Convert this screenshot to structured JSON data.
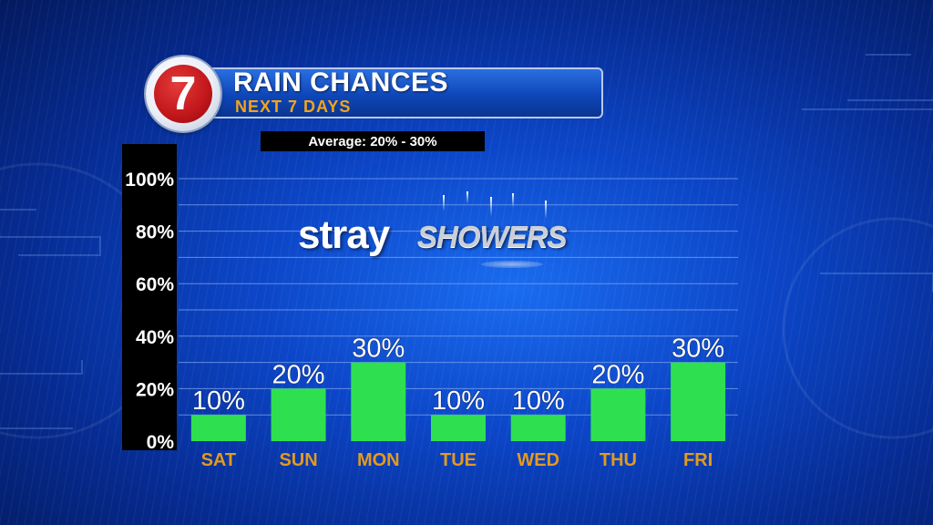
{
  "header": {
    "logo_text": "7",
    "title": "RAIN CHANCES",
    "subtitle": "NEXT 7 DAYS",
    "average_text": "Average: 20% - 30%"
  },
  "graphic": {
    "word1": "stray",
    "word2": "SHOWERS"
  },
  "colors": {
    "bar": "#2ee050",
    "day_label": "#e39a1e",
    "value_label": "#ffffff",
    "gridline": "#7fa6ee",
    "title_accent": "#f4a41a",
    "logo_red": "#c1161a"
  },
  "chart_data": {
    "type": "bar",
    "categories": [
      "SAT",
      "SUN",
      "MON",
      "TUE",
      "WED",
      "THU",
      "FRI"
    ],
    "values": [
      10,
      20,
      30,
      10,
      10,
      20,
      30
    ],
    "value_labels": [
      "10%",
      "20%",
      "30%",
      "10%",
      "10%",
      "20%",
      "30%"
    ],
    "y_ticks": [
      0,
      20,
      40,
      60,
      80,
      100
    ],
    "y_tick_labels": [
      "0%",
      "20%",
      "40%",
      "60%",
      "80%",
      "100%"
    ],
    "ylim": [
      0,
      100
    ],
    "grid": true
  }
}
